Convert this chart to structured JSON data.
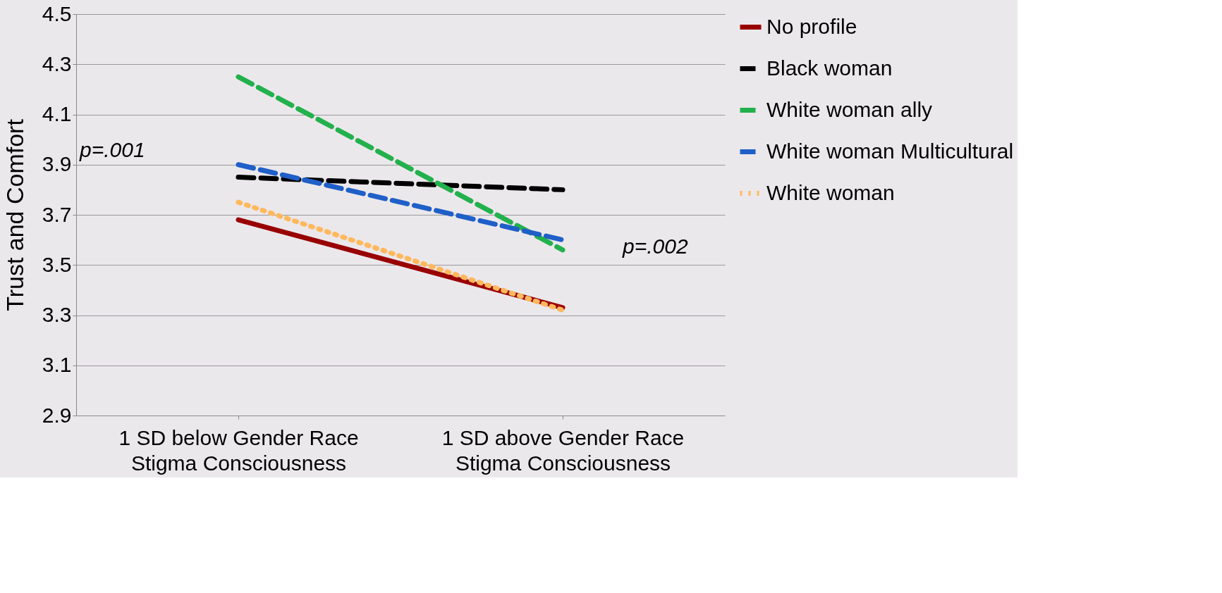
{
  "chart_data": {
    "type": "line",
    "ylabel": "Trust and Comfort",
    "categories": [
      "1 SD below Gender Race Stigma Consciousness",
      "1 SD above Gender Race Stigma Consciousness"
    ],
    "series": [
      {
        "name": "No profile",
        "color": "#990000",
        "values": [
          3.68,
          3.33
        ],
        "line_style": "solid"
      },
      {
        "name": "Black woman",
        "color": "#000000",
        "values": [
          3.85,
          3.8
        ],
        "line_style": "dashed"
      },
      {
        "name": "White woman ally",
        "color": "#22b14c",
        "values": [
          4.25,
          3.56
        ],
        "line_style": "dashed"
      },
      {
        "name": "White woman Multicultural",
        "color": "#1f5fc8",
        "values": [
          3.9,
          3.6
        ],
        "line_style": "dashed"
      },
      {
        "name": "White woman",
        "color": "#ffb85c",
        "values": [
          3.75,
          3.32
        ],
        "line_style": "dotted"
      }
    ],
    "ylim": [
      2.9,
      4.5
    ],
    "yticks": [
      2.9,
      3.1,
      3.3,
      3.5,
      3.7,
      3.9,
      4.1,
      4.3,
      4.5
    ],
    "grid": "y",
    "legend": "right",
    "marker": "none",
    "annotations": [
      "p=.001",
      "p=.002"
    ]
  }
}
